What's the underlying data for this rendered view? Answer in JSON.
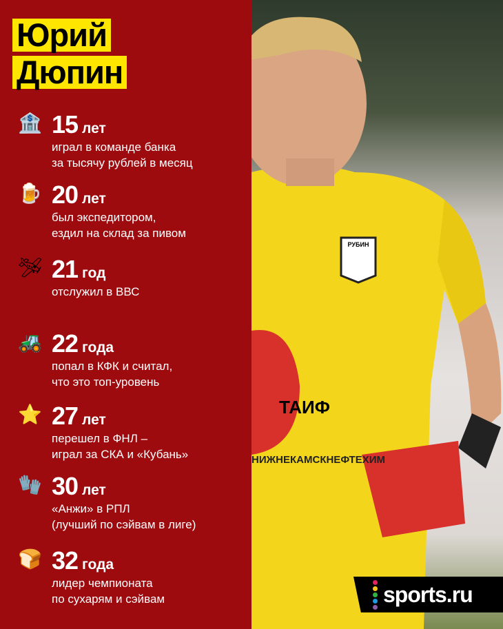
{
  "title": {
    "first": "Юрий",
    "last": "Дюпин"
  },
  "items": [
    {
      "icon": "bank-icon",
      "glyph": "🏦",
      "num": "15",
      "unit": "лет",
      "lines": [
        "играл в команде банка",
        "за тысячу рублей в месяц"
      ]
    },
    {
      "icon": "beer-mug-icon",
      "glyph": "🍺",
      "num": "20",
      "unit": "лет",
      "lines": [
        "был экспедитором,",
        "ездил на склад за пивом"
      ]
    },
    {
      "icon": "airplane-icon",
      "glyph": "🛩",
      "num": "21",
      "unit": "год",
      "lines": [
        "отслужил в ВВС"
      ]
    },
    {
      "icon": "tractor-icon",
      "glyph": "🚜",
      "num": "22",
      "unit": "года",
      "lines": [
        "попал в КФК и считал,",
        "что это топ-уровень"
      ]
    },
    {
      "icon": "star-icon",
      "glyph": "⭐",
      "num": "27",
      "unit": "лет",
      "lines": [
        "перешел в ФНЛ –",
        "играл за СКА и «Кубань»"
      ]
    },
    {
      "icon": "glove-icon",
      "glyph": "🧤",
      "num": "30",
      "unit": "лет",
      "lines": [
        "«Анжи» в РПЛ",
        "(лучший по сэйвам в лиге)"
      ]
    },
    {
      "icon": "bread-icon",
      "glyph": "🍞",
      "num": "32",
      "unit": "года",
      "lines": [
        "лидер чемпионата",
        "по сухарям и сэйвам"
      ]
    }
  ],
  "photo": {
    "club_badge": "РУБИН",
    "sponsor": "ТАИФ",
    "sponsor2": "НИЖНЕКАМСКНЕФТЕХИМ"
  },
  "logo": {
    "text": "sports.ru",
    "dot_colors": [
      "#e0245e",
      "#f5c518",
      "#2fb344",
      "#1e9be0",
      "#8e5ca8"
    ]
  },
  "colors": {
    "panel": "#9e0b0f",
    "highlight": "#ffe600",
    "jersey": "#f3d61c"
  }
}
